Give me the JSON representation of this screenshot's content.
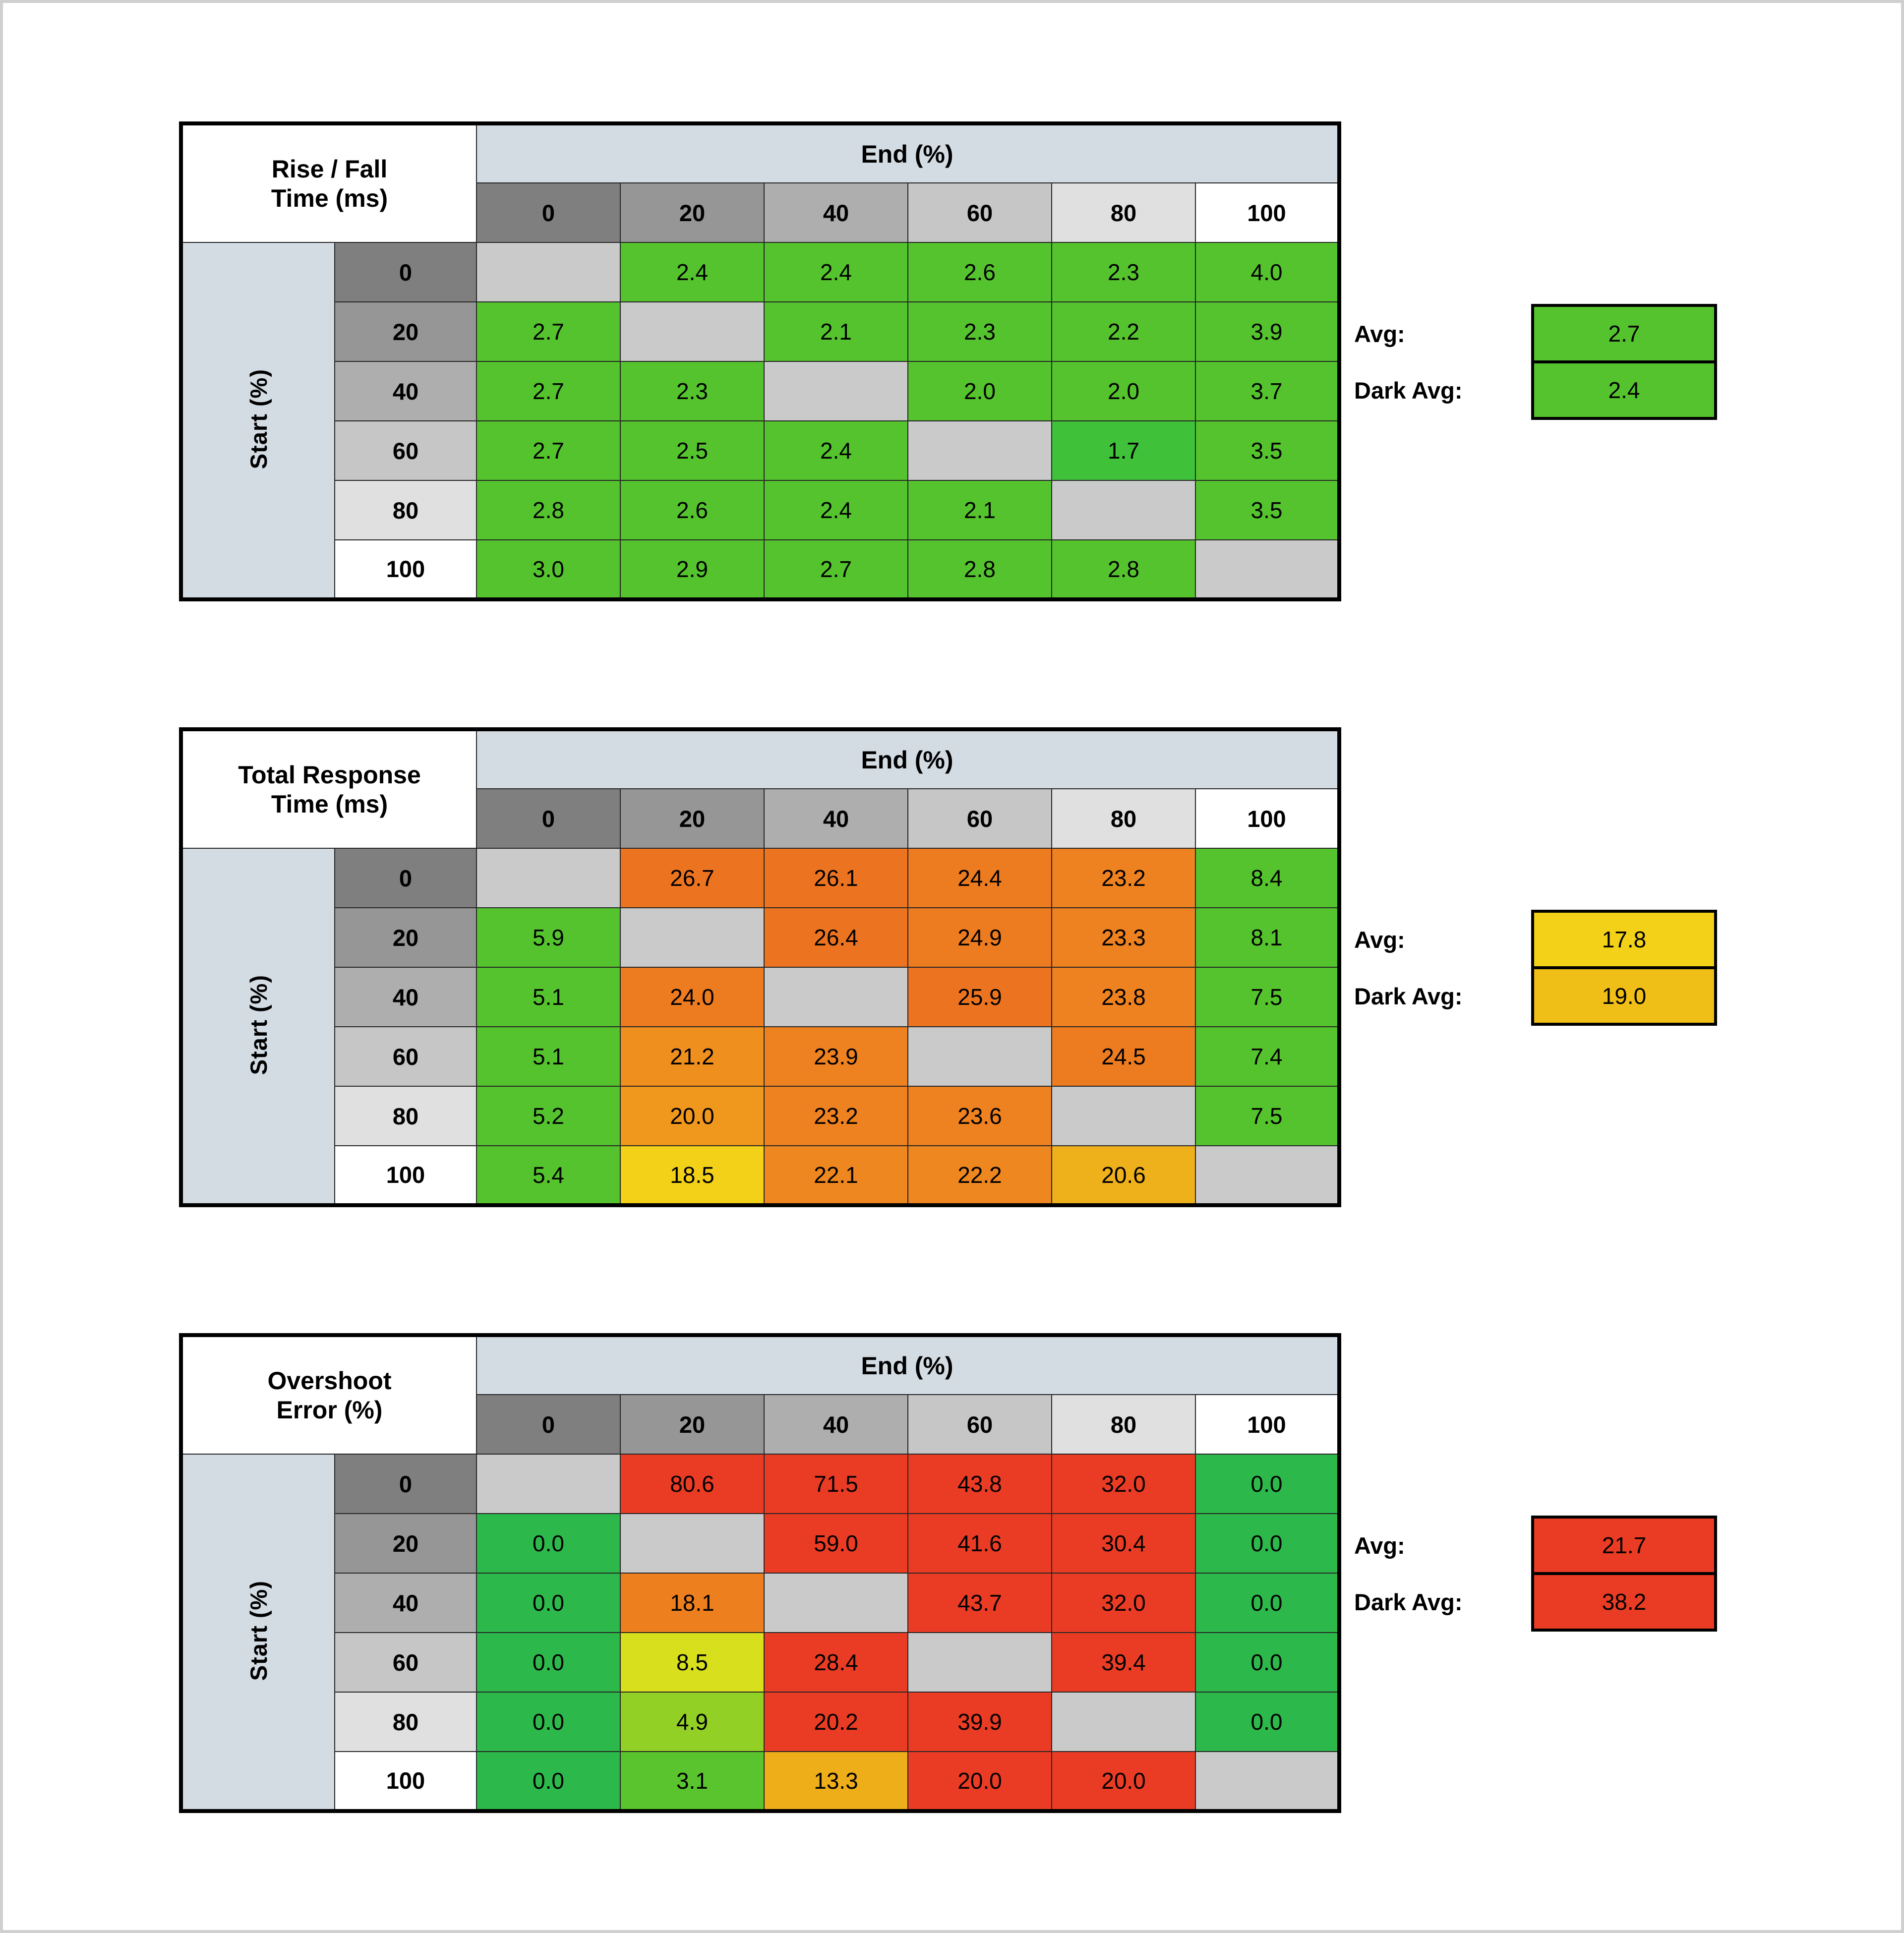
{
  "page": {
    "background": "#ffffff",
    "frame_color": "#cfcfcf"
  },
  "shared": {
    "col_group_label": "End (%)",
    "row_group_label": "Start (%)",
    "levels": [
      "0",
      "20",
      "40",
      "60",
      "80",
      "100"
    ],
    "header_grays": [
      "#7f7f7f",
      "#969696",
      "#aeaeae",
      "#c6c6c6",
      "#e0e0e0",
      "#ffffff"
    ],
    "strip_color": "#d3dbe3",
    "blank_color": "#cacaca",
    "avg_label": "Avg:",
    "dark_avg_label": "Dark Avg:"
  },
  "chart_data": [
    {
      "type": "heatmap",
      "title": "Rise / Fall Time (ms)",
      "title_lines": [
        "Rise / Fall",
        "Time (ms)"
      ],
      "xlabel": "End (%)",
      "ylabel": "Start (%)",
      "x_levels": [
        "0",
        "20",
        "40",
        "60",
        "80",
        "100"
      ],
      "y_levels": [
        "0",
        "20",
        "40",
        "60",
        "80",
        "100"
      ],
      "values": [
        [
          null,
          "2.4",
          "2.4",
          "2.6",
          "2.3",
          "4.0"
        ],
        [
          "2.7",
          null,
          "2.1",
          "2.3",
          "2.2",
          "3.9"
        ],
        [
          "2.7",
          "2.3",
          null,
          "2.0",
          "2.0",
          "3.7"
        ],
        [
          "2.7",
          "2.5",
          "2.4",
          null,
          "1.7",
          "3.5"
        ],
        [
          "2.8",
          "2.6",
          "2.4",
          "2.1",
          null,
          "3.5"
        ],
        [
          "3.0",
          "2.9",
          "2.7",
          "2.8",
          "2.8",
          null
        ]
      ],
      "cell_colors": [
        [
          null,
          "#55c32e",
          "#55c32e",
          "#55c32e",
          "#55c32e",
          "#55c32e"
        ],
        [
          "#55c32e",
          null,
          "#55c32e",
          "#55c32e",
          "#55c32e",
          "#55c32e"
        ],
        [
          "#55c32e",
          "#55c32e",
          null,
          "#55c32e",
          "#55c32e",
          "#55c32e"
        ],
        [
          "#55c32e",
          "#55c32e",
          "#55c32e",
          null,
          "#3fc13a",
          "#55c32e"
        ],
        [
          "#55c32e",
          "#55c32e",
          "#55c32e",
          "#55c32e",
          null,
          "#55c32e"
        ],
        [
          "#55c32e",
          "#55c32e",
          "#55c32e",
          "#55c32e",
          "#55c32e",
          null
        ]
      ],
      "avg": {
        "label": "Avg:",
        "value": "2.7",
        "color": "#55c32e"
      },
      "dark_avg": {
        "label": "Dark Avg:",
        "value": "2.4",
        "color": "#55c32e"
      }
    },
    {
      "type": "heatmap",
      "title": "Total Response Time (ms)",
      "title_lines": [
        "Total Response",
        "Time (ms)"
      ],
      "xlabel": "End (%)",
      "ylabel": "Start (%)",
      "x_levels": [
        "0",
        "20",
        "40",
        "60",
        "80",
        "100"
      ],
      "y_levels": [
        "0",
        "20",
        "40",
        "60",
        "80",
        "100"
      ],
      "values": [
        [
          null,
          "26.7",
          "26.1",
          "24.4",
          "23.2",
          "8.4"
        ],
        [
          "5.9",
          null,
          "26.4",
          "24.9",
          "23.3",
          "8.1"
        ],
        [
          "5.1",
          "24.0",
          null,
          "25.9",
          "23.8",
          "7.5"
        ],
        [
          "5.1",
          "21.2",
          "23.9",
          null,
          "24.5",
          "7.4"
        ],
        [
          "5.2",
          "20.0",
          "23.2",
          "23.6",
          null,
          "7.5"
        ],
        [
          "5.4",
          "18.5",
          "22.1",
          "22.2",
          "20.6",
          null
        ]
      ],
      "cell_colors": [
        [
          null,
          "#ec7421",
          "#ec7421",
          "#ed7b20",
          "#ee8120",
          "#55c32e"
        ],
        [
          "#55c32e",
          null,
          "#ec7421",
          "#ed7b20",
          "#ee8120",
          "#55c32e"
        ],
        [
          "#55c32e",
          "#ed7b20",
          null,
          "#ec7421",
          "#ee8120",
          "#55c32e"
        ],
        [
          "#55c32e",
          "#ef8f1e",
          "#ee8120",
          null,
          "#ed7b20",
          "#55c32e"
        ],
        [
          "#55c32e",
          "#f0971d",
          "#ee8120",
          "#ee8120",
          null,
          "#55c32e"
        ],
        [
          "#55c32e",
          "#f2d118",
          "#ee8720",
          "#ee8720",
          "#eeb01b",
          null
        ]
      ],
      "avg": {
        "label": "Avg:",
        "value": "17.8",
        "color": "#f2d118"
      },
      "dark_avg": {
        "label": "Dark Avg:",
        "value": "19.0",
        "color": "#efbe17"
      }
    },
    {
      "type": "heatmap",
      "title": "Overshoot Error (%)",
      "title_lines": [
        "Overshoot",
        "Error (%)"
      ],
      "xlabel": "End (%)",
      "ylabel": "Start (%)",
      "x_levels": [
        "0",
        "20",
        "40",
        "60",
        "80",
        "100"
      ],
      "y_levels": [
        "0",
        "20",
        "40",
        "60",
        "80",
        "100"
      ],
      "values": [
        [
          null,
          "80.6",
          "71.5",
          "43.8",
          "32.0",
          "0.0"
        ],
        [
          "0.0",
          null,
          "59.0",
          "41.6",
          "30.4",
          "0.0"
        ],
        [
          "0.0",
          "18.1",
          null,
          "43.7",
          "32.0",
          "0.0"
        ],
        [
          "0.0",
          "8.5",
          "28.4",
          null,
          "39.4",
          "0.0"
        ],
        [
          "0.0",
          "4.9",
          "20.2",
          "39.9",
          null,
          "0.0"
        ],
        [
          "0.0",
          "3.1",
          "13.3",
          "20.0",
          "20.0",
          null
        ]
      ],
      "cell_colors": [
        [
          null,
          "#ea3c25",
          "#ea3c25",
          "#ea3c25",
          "#ea3c25",
          "#2db84b"
        ],
        [
          "#2db84b",
          null,
          "#ea3c25",
          "#ea3c25",
          "#ea3c25",
          "#2db84b"
        ],
        [
          "#2db84b",
          "#ed7f1f",
          null,
          "#ea3c25",
          "#ea3c25",
          "#2db84b"
        ],
        [
          "#2db84b",
          "#d8df1d",
          "#ea3c25",
          null,
          "#ea3c25",
          "#2db84b"
        ],
        [
          "#2db84b",
          "#93d025",
          "#ea3c25",
          "#ea3c25",
          null,
          "#2db84b"
        ],
        [
          "#2db84b",
          "#5ac42e",
          "#eeae1a",
          "#ea3c25",
          "#ea3c25",
          null
        ]
      ],
      "avg": {
        "label": "Avg:",
        "value": "21.7",
        "color": "#ea3c25"
      },
      "dark_avg": {
        "label": "Dark Avg:",
        "value": "38.2",
        "color": "#ea3c25"
      }
    }
  ]
}
